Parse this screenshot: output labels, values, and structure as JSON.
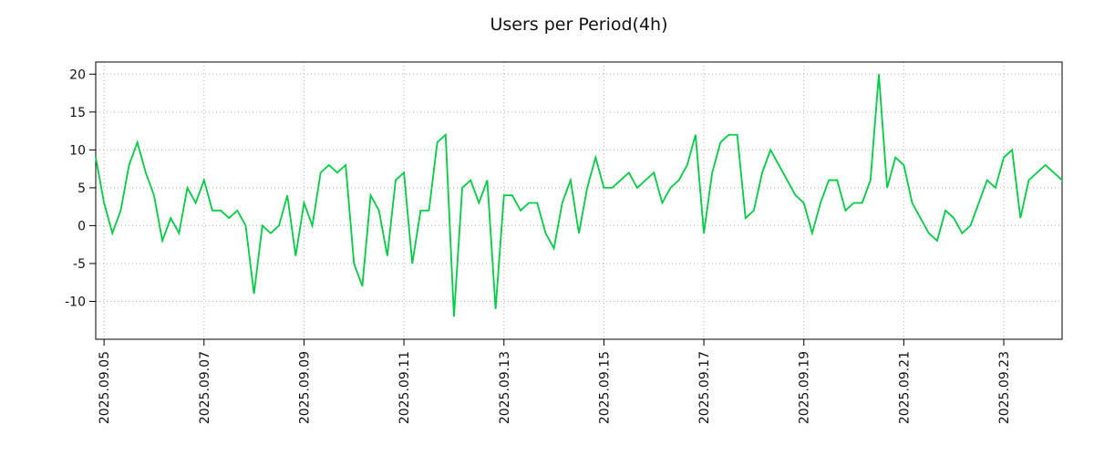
{
  "chart_data": {
    "type": "line",
    "title": "Users per Period(4h)",
    "xlabel": "",
    "ylabel": "",
    "grid": "dotted",
    "legend": "none",
    "ylim": [
      -15,
      21.6
    ],
    "y_ticks": [
      -10,
      -5,
      0,
      5,
      10,
      15,
      20
    ],
    "x_tick_labels": [
      "2025.09.05",
      "2025.09.07",
      "2025.09.09",
      "2025.09.11",
      "2025.09.13",
      "2025.09.15",
      "2025.09.17",
      "2025.09.19",
      "2025.09.21",
      "2025.09.23"
    ],
    "x_tick_indices": [
      1,
      13,
      25,
      37,
      49,
      61,
      73,
      85,
      97,
      109
    ],
    "x_start": "2025.09.04 20:00",
    "x_interval_hours": 4,
    "series": [
      {
        "name": "users",
        "color": "#00cc44",
        "values": [
          9,
          3,
          -1,
          2,
          8,
          11,
          7,
          4,
          -2,
          1,
          -1,
          5,
          3,
          6,
          2,
          2,
          1,
          2,
          0,
          -9,
          0,
          -1,
          0,
          4,
          -4,
          3,
          0,
          7,
          8,
          7,
          8,
          -5,
          -8,
          4,
          2,
          -4,
          6,
          7,
          -5,
          2,
          2,
          11,
          12,
          -12,
          5,
          6,
          3,
          6,
          -11,
          4,
          4,
          2,
          3,
          3,
          -1,
          -3,
          3,
          6,
          -1,
          5,
          9,
          5,
          5,
          6,
          7,
          5,
          6,
          7,
          3,
          5,
          6,
          8,
          12,
          -1,
          7,
          11,
          12,
          12,
          1,
          2,
          7,
          10,
          8,
          6,
          4,
          3,
          -1,
          3,
          6,
          6,
          2,
          3,
          3,
          6,
          20,
          5,
          9,
          8,
          3,
          1,
          -1,
          -2,
          2,
          1,
          -1,
          0,
          3,
          6,
          5,
          9,
          10,
          1,
          6,
          7,
          8,
          7,
          6
        ]
      }
    ]
  }
}
